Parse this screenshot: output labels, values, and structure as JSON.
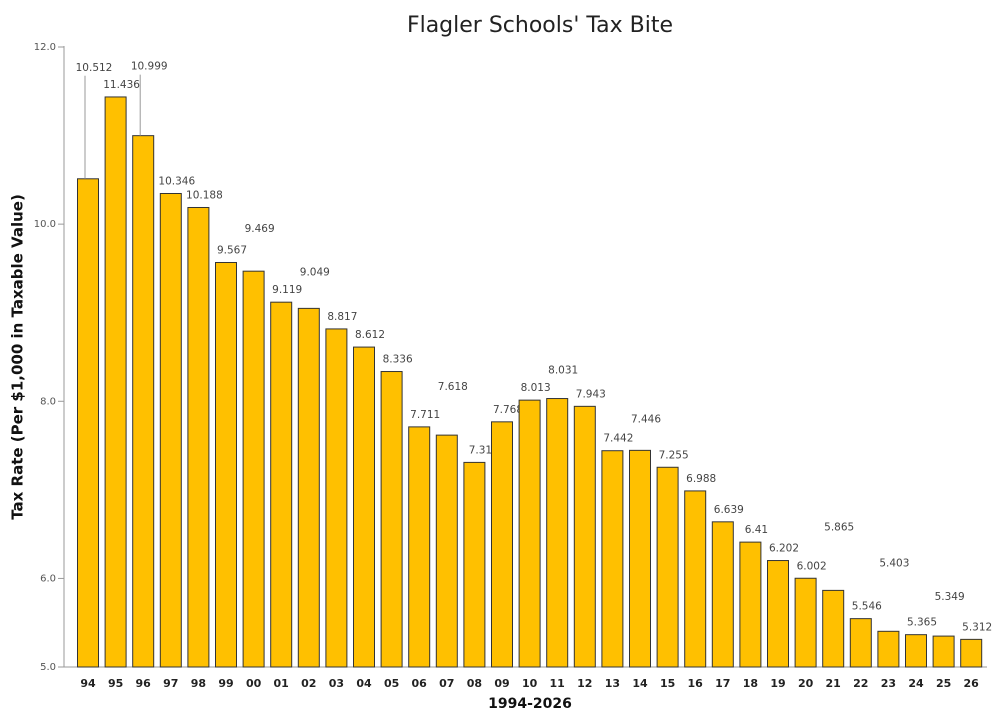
{
  "chart_data": {
    "type": "bar",
    "title": "Flagler Schools' Tax Bite",
    "x_label": "1994-2026",
    "y_label": "Tax Rate (Per $1,000 in Taxable Value)",
    "categories": [
      "94",
      "95",
      "96",
      "97",
      "98",
      "99",
      "00",
      "01",
      "02",
      "03",
      "04",
      "05",
      "06",
      "07",
      "08",
      "09",
      "10",
      "11",
      "12",
      "13",
      "14",
      "15",
      "16",
      "17",
      "18",
      "19",
      "20",
      "21",
      "22",
      "23",
      "24",
      "25",
      "26"
    ],
    "values": [
      10.512,
      11.436,
      10.999,
      10.346,
      10.188,
      9.567,
      9.469,
      9.119,
      9.049,
      8.817,
      8.612,
      8.336,
      7.711,
      7.618,
      7.31,
      7.768,
      8.013,
      8.031,
      7.943,
      7.442,
      7.446,
      7.255,
      6.988,
      6.639,
      6.41,
      6.202,
      6.002,
      5.865,
      5.546,
      5.403,
      5.365,
      5.349,
      5.312
    ],
    "color": "#ffc000",
    "ylim": [
      5,
      12
    ],
    "yticks": [
      {
        "value": 5,
        "label": "5.0"
      },
      {
        "value": 6,
        "label": "6.0"
      },
      {
        "value": 8,
        "label": "8.0"
      },
      {
        "value": 10,
        "label": "10.0"
      },
      {
        "value": 12,
        "label": "12.0"
      }
    ],
    "grid": false
  }
}
